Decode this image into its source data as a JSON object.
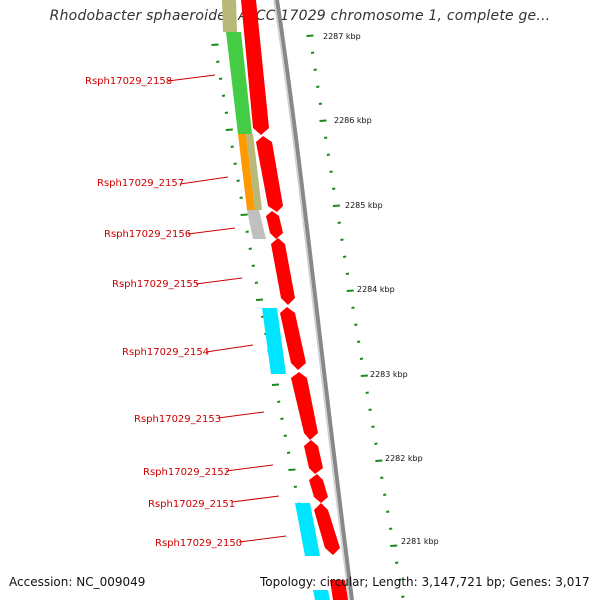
{
  "title": "Rhodobacter sphaeroides ATCC 17029 chromosome 1, complete ge...",
  "footer": {
    "accession": "Accession: NC_009049",
    "summary": "Topology: circular; Length: 3,147,721 bp; Genes: 3,017"
  },
  "colors": {
    "cds_red": "#ff0000",
    "cds_green": "#44cc44",
    "cds_orange": "#ff9900",
    "cds_gray": "#c0c0c0",
    "cds_cyan": "#00e5ff",
    "cds_olive": "#b8b878",
    "label_red": "#cc0000",
    "tick_green": "#1a8a1a",
    "backbone_gray": "#888888"
  },
  "genes": [
    {
      "label": "Rsph17029_2158"
    },
    {
      "label": "Rsph17029_2157"
    },
    {
      "label": "Rsph17029_2156"
    },
    {
      "label": "Rsph17029_2155"
    },
    {
      "label": "Rsph17029_2154"
    },
    {
      "label": "Rsph17029_2153"
    },
    {
      "label": "Rsph17029_2152"
    },
    {
      "label": "Rsph17029_2151"
    },
    {
      "label": "Rsph17029_2150"
    }
  ],
  "scale": {
    "labels": [
      "2287 kbp",
      "2286 kbp",
      "2285 kbp",
      "2284 kbp",
      "2283 kbp",
      "2282 kbp",
      "2281 kbp"
    ]
  }
}
